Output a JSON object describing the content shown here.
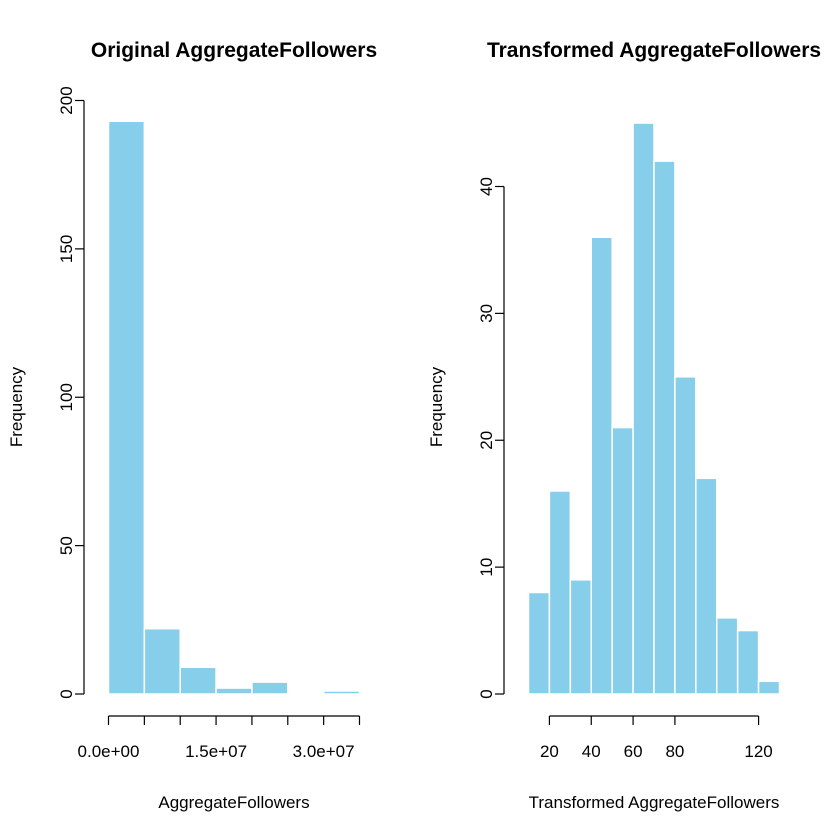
{
  "chart_data": [
    {
      "type": "bar",
      "title": "Original AggregateFollowers",
      "xlabel": "AggregateFollowers",
      "ylabel": "Frequency",
      "bar_color": "#87CEEB",
      "bin_edges": [
        0,
        5000000,
        10000000,
        15000000,
        20000000,
        25000000,
        30000000,
        35000000
      ],
      "values": [
        193,
        22,
        9,
        2,
        4,
        0,
        1
      ],
      "xlim": [
        0,
        35000000
      ],
      "ylim": [
        0,
        200
      ],
      "x_ticks": [
        0,
        5000000,
        10000000,
        15000000,
        20000000,
        25000000,
        30000000,
        35000000
      ],
      "x_tick_labels": [
        {
          "value": 0,
          "label": "0.0e+00"
        },
        {
          "value": 15000000,
          "label": "1.5e+07"
        },
        {
          "value": 30000000,
          "label": "3.0e+07"
        }
      ],
      "y_ticks": [
        0,
        50,
        100,
        150,
        200
      ],
      "y_tick_labels": [
        "0",
        "50",
        "100",
        "150",
        "200"
      ]
    },
    {
      "type": "bar",
      "title": "Transformed AggregateFollowers",
      "xlabel": "Transformed AggregateFollowers",
      "ylabel": "Frequency",
      "bar_color": "#87CEEB",
      "bin_edges": [
        10,
        20,
        30,
        40,
        50,
        60,
        70,
        80,
        90,
        100,
        110,
        120,
        130
      ],
      "values": [
        8,
        16,
        9,
        36,
        21,
        45,
        42,
        25,
        17,
        6,
        5,
        1
      ],
      "xlim": [
        10,
        130
      ],
      "ylim": [
        0,
        45
      ],
      "x_ticks": [
        20,
        40,
        60,
        80,
        120
      ],
      "x_tick_labels": [
        "20",
        "40",
        "60",
        "80",
        "120"
      ],
      "y_ticks": [
        0,
        10,
        20,
        30,
        40
      ],
      "y_tick_labels": [
        "0",
        "10",
        "20",
        "30",
        "40"
      ]
    }
  ]
}
